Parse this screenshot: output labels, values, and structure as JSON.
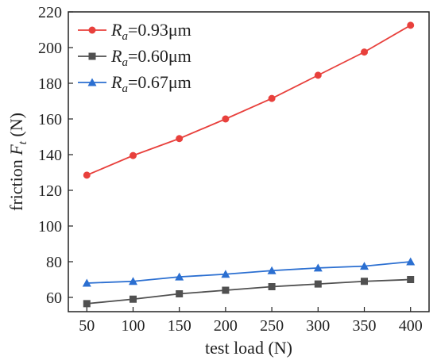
{
  "chart_data": {
    "type": "line",
    "title": "",
    "xlabel": "test load (N)",
    "ylabel": {
      "prefix": "friction ",
      "var": "F",
      "sub": "t",
      "suffix": " (N)"
    },
    "x": [
      50,
      100,
      150,
      200,
      250,
      300,
      350,
      400
    ],
    "xticks": [
      "50",
      "100",
      "150",
      "200",
      "250",
      "300",
      "350",
      "400"
    ],
    "yticks": [
      "60",
      "80",
      "100",
      "120",
      "140",
      "160",
      "180",
      "200",
      "220"
    ],
    "xlim": [
      30,
      420
    ],
    "ylim": [
      52,
      220
    ],
    "grid": false,
    "legend_position": "top-left",
    "series": [
      {
        "name": {
          "var": "R",
          "sub": "a",
          "value": "=0.93μm"
        },
        "color": "#e8403c",
        "marker": "circle",
        "values": [
          128.5,
          139.5,
          149,
          160,
          171.5,
          184.5,
          197.5,
          212.5
        ]
      },
      {
        "name": {
          "var": "R",
          "sub": "a",
          "value": "=0.60μm"
        },
        "color": "#505050",
        "marker": "square",
        "values": [
          56.5,
          59,
          62,
          64,
          66,
          67.5,
          69,
          70
        ]
      },
      {
        "name": {
          "var": "R",
          "sub": "a",
          "value": "=0.67μm"
        },
        "color": "#2b6fd1",
        "marker": "triangle",
        "values": [
          68,
          69,
          71.5,
          73,
          75,
          76.5,
          77.5,
          80
        ]
      }
    ]
  }
}
